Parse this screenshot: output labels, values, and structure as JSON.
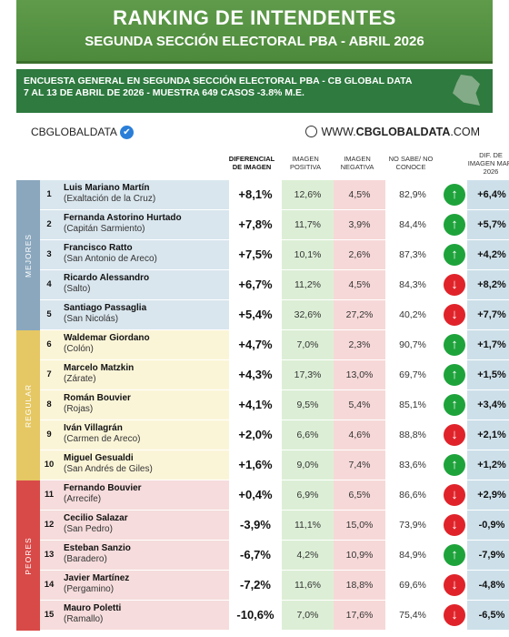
{
  "header": {
    "title": "RANKING DE INTENDENTES",
    "subtitle": "SEGUNDA SECCIÓN ELECTORAL PBA - ABRIL 2026"
  },
  "survey": {
    "line1": "ENCUESTA GENERAL EN SEGUNDA SECCIÓN ELECTORAL PBA - CB GLOBAL DATA",
    "line2": "7 AL 13 DE ABRIL  DE 2026 - MUESTRA 649  CASOS -3.8% M.E."
  },
  "brand": {
    "name": "CBGLOBALDATA",
    "check_icon": "✔"
  },
  "web": {
    "prefix": "WWW.",
    "domain": "CBGLOBALDATA",
    "suffix": ".COM"
  },
  "columns": {
    "diff": "DIFERENCIAL DE IMAGEN",
    "pos": "IMAGEN POSITIVA",
    "neg": "IMAGEN NEGATIVA",
    "nosabe": "NO SABE/ NO CONOCE",
    "dif": "DIF. DE IMAGEN MAR. 2026"
  },
  "groups": [
    {
      "label": "MEJORES",
      "color": "#8aa7bd",
      "rowbg": "#d9e6ee",
      "rows": 5
    },
    {
      "label": "REGULAR",
      "color": "#e5c864",
      "rowbg": "#fbf5d8",
      "rows": 5
    },
    {
      "label": "PEORES",
      "color": "#d84a48",
      "rowbg": "#f6dcdc",
      "rows": 5
    }
  ],
  "colors": {
    "pos_bg": "#dcefd6",
    "neg_bg": "#f7d8d8",
    "up": "#1ea33b",
    "down": "#e0232a"
  },
  "chart_data": {
    "type": "table",
    "title": "RANKING DE INTENDENTES",
    "rows": [
      {
        "num": "1",
        "name": "Luis Mariano Martín",
        "town": "(Exaltación de la Cruz)",
        "diff": "+8,1%",
        "pos": "12,6%",
        "neg": "4,5%",
        "nosabe": "82,9%",
        "trend": "up",
        "dif": "+6,4%"
      },
      {
        "num": "2",
        "name": "Fernanda Astorino Hurtado",
        "town": "(Capitán Sarmiento)",
        "diff": "+7,8%",
        "pos": "11,7%",
        "neg": "3,9%",
        "nosabe": "84,4%",
        "trend": "up",
        "dif": "+5,7%"
      },
      {
        "num": "3",
        "name": "Francisco Ratto",
        "town": "(San Antonio de Areco)",
        "diff": "+7,5%",
        "pos": "10,1%",
        "neg": "2,6%",
        "nosabe": "87,3%",
        "trend": "up",
        "dif": "+4,2%"
      },
      {
        "num": "4",
        "name": "Ricardo Alessandro",
        "town": "(Salto)",
        "diff": "+6,7%",
        "pos": "11,2%",
        "neg": "4,5%",
        "nosabe": "84,3%",
        "trend": "down",
        "dif": "+8,2%"
      },
      {
        "num": "5",
        "name": "Santiago Passaglia",
        "town": "(San Nicolás)",
        "diff": "+5,4%",
        "pos": "32,6%",
        "neg": "27,2%",
        "nosabe": "40,2%",
        "trend": "down",
        "dif": "+7,7%"
      },
      {
        "num": "6",
        "name": "Waldemar Giordano",
        "town": "(Colón)",
        "diff": "+4,7%",
        "pos": "7,0%",
        "neg": "2,3%",
        "nosabe": "90,7%",
        "trend": "up",
        "dif": "+1,7%"
      },
      {
        "num": "7",
        "name": "Marcelo Matzkin",
        "town": "(Zárate)",
        "diff": "+4,3%",
        "pos": "17,3%",
        "neg": "13,0%",
        "nosabe": "69,7%",
        "trend": "up",
        "dif": "+1,5%"
      },
      {
        "num": "8",
        "name": "Román Bouvier",
        "town": "(Rojas)",
        "diff": "+4,1%",
        "pos": "9,5%",
        "neg": "5,4%",
        "nosabe": "85,1%",
        "trend": "up",
        "dif": "+3,4%"
      },
      {
        "num": "9",
        "name": "Iván Villagrán",
        "town": "(Carmen de Areco)",
        "diff": "+2,0%",
        "pos": "6,6%",
        "neg": "4,6%",
        "nosabe": "88,8%",
        "trend": "down",
        "dif": "+2,1%"
      },
      {
        "num": "10",
        "name": "Miguel Gesualdi",
        "town": "(San Andrés de Giles)",
        "diff": "+1,6%",
        "pos": "9,0%",
        "neg": "7,4%",
        "nosabe": "83,6%",
        "trend": "up",
        "dif": "+1,2%"
      },
      {
        "num": "11",
        "name": "Fernando Bouvier",
        "town": "(Arrecife)",
        "diff": "+0,4%",
        "pos": "6,9%",
        "neg": "6,5%",
        "nosabe": "86,6%",
        "trend": "down",
        "dif": "+2,9%"
      },
      {
        "num": "12",
        "name": "Cecilio Salazar",
        "town": "(San Pedro)",
        "diff": "-3,9%",
        "pos": "11,1%",
        "neg": "15,0%",
        "nosabe": "73,9%",
        "trend": "down",
        "dif": "-0,9%"
      },
      {
        "num": "13",
        "name": "Esteban Sanzio",
        "town": "(Baradero)",
        "diff": "-6,7%",
        "pos": "4,2%",
        "neg": "10,9%",
        "nosabe": "84,9%",
        "trend": "up",
        "dif": "-7,9%"
      },
      {
        "num": "14",
        "name": "Javier Martínez",
        "town": "(Pergamino)",
        "diff": "-7,2%",
        "pos": "11,6%",
        "neg": "18,8%",
        "nosabe": "69,6%",
        "trend": "down",
        "dif": "-4,8%"
      },
      {
        "num": "15",
        "name": "Mauro Poletti",
        "town": "(Ramallo)",
        "diff": "-10,6%",
        "pos": "7,0%",
        "neg": "17,6%",
        "nosabe": "75,4%",
        "trend": "down",
        "dif": "-6,5%"
      }
    ]
  }
}
